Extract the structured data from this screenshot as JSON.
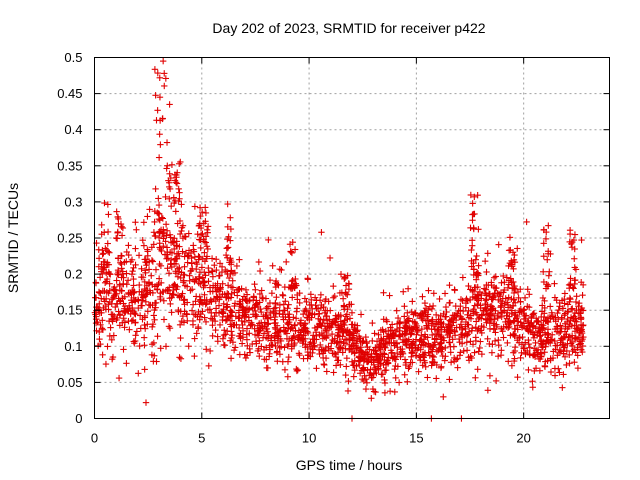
{
  "chart_data": {
    "type": "scatter",
    "title": "Day 202 of 2023, SRMTID for receiver p422",
    "xlabel": "GPS time / hours",
    "ylabel": "SRMTID / TECUs",
    "xlim": [
      0,
      24
    ],
    "ylim": [
      0,
      0.5
    ],
    "x_ticks": [
      0,
      5,
      10,
      15,
      20
    ],
    "x_tick_labels": [
      "0",
      "5",
      "10",
      "15",
      "20"
    ],
    "y_ticks": [
      0,
      0.05,
      0.1,
      0.15,
      0.2,
      0.25,
      0.3,
      0.35,
      0.4,
      0.45,
      0.5
    ],
    "y_tick_labels": [
      "0",
      "0.05",
      "0.1",
      "0.15",
      "0.2",
      "0.25",
      "0.3",
      "0.35",
      "0.4",
      "0.45",
      "0.5"
    ],
    "grid": true,
    "marker": "plus",
    "color": "#e00000",
    "series": [
      {
        "name": "SRMTID",
        "trend": [
          {
            "x": 0.0,
            "mean": 0.15,
            "spread": 0.04
          },
          {
            "x": 1.0,
            "mean": 0.16,
            "spread": 0.05
          },
          {
            "x": 2.0,
            "mean": 0.165,
            "spread": 0.05
          },
          {
            "x": 2.6,
            "mean": 0.175,
            "spread": 0.06
          },
          {
            "x": 3.2,
            "mean": 0.2,
            "spread": 0.07
          },
          {
            "x": 4.0,
            "mean": 0.185,
            "spread": 0.06
          },
          {
            "x": 5.0,
            "mean": 0.17,
            "spread": 0.05
          },
          {
            "x": 6.0,
            "mean": 0.155,
            "spread": 0.045
          },
          {
            "x": 7.0,
            "mean": 0.14,
            "spread": 0.04
          },
          {
            "x": 8.0,
            "mean": 0.13,
            "spread": 0.035
          },
          {
            "x": 9.0,
            "mean": 0.13,
            "spread": 0.04
          },
          {
            "x": 10.0,
            "mean": 0.125,
            "spread": 0.035
          },
          {
            "x": 11.0,
            "mean": 0.12,
            "spread": 0.035
          },
          {
            "x": 12.0,
            "mean": 0.11,
            "spread": 0.035
          },
          {
            "x": 12.5,
            "mean": 0.08,
            "spread": 0.025
          },
          {
            "x": 13.0,
            "mean": 0.08,
            "spread": 0.025
          },
          {
            "x": 13.5,
            "mean": 0.095,
            "spread": 0.03
          },
          {
            "x": 14.5,
            "mean": 0.11,
            "spread": 0.03
          },
          {
            "x": 15.5,
            "mean": 0.115,
            "spread": 0.03
          },
          {
            "x": 16.5,
            "mean": 0.115,
            "spread": 0.03
          },
          {
            "x": 17.5,
            "mean": 0.14,
            "spread": 0.045
          },
          {
            "x": 18.5,
            "mean": 0.15,
            "spread": 0.045
          },
          {
            "x": 19.5,
            "mean": 0.14,
            "spread": 0.04
          },
          {
            "x": 20.5,
            "mean": 0.11,
            "spread": 0.035
          },
          {
            "x": 21.5,
            "mean": 0.12,
            "spread": 0.04
          },
          {
            "x": 22.8,
            "mean": 0.14,
            "spread": 0.045
          }
        ],
        "bursts": [
          {
            "x_start": 0.2,
            "x_end": 0.7,
            "y_min": 0.2,
            "y_max": 0.3
          },
          {
            "x_start": 1.0,
            "x_end": 1.3,
            "y_min": 0.2,
            "y_max": 0.29
          },
          {
            "x_start": 2.8,
            "x_end": 3.4,
            "y_min": 0.25,
            "y_max": 0.5
          },
          {
            "x_start": 3.4,
            "x_end": 4.0,
            "y_min": 0.22,
            "y_max": 0.36
          },
          {
            "x_start": 4.8,
            "x_end": 5.3,
            "y_min": 0.22,
            "y_max": 0.3
          },
          {
            "x_start": 6.1,
            "x_end": 6.4,
            "y_min": 0.2,
            "y_max": 0.3
          },
          {
            "x_start": 9.1,
            "x_end": 9.4,
            "y_min": 0.18,
            "y_max": 0.25
          },
          {
            "x_start": 11.6,
            "x_end": 11.9,
            "y_min": 0.15,
            "y_max": 0.21
          },
          {
            "x_start": 17.5,
            "x_end": 17.9,
            "y_min": 0.2,
            "y_max": 0.31
          },
          {
            "x_start": 19.3,
            "x_end": 19.6,
            "y_min": 0.18,
            "y_max": 0.25
          },
          {
            "x_start": 20.9,
            "x_end": 21.2,
            "y_min": 0.18,
            "y_max": 0.28
          },
          {
            "x_start": 22.1,
            "x_end": 22.4,
            "y_min": 0.18,
            "y_max": 0.26
          }
        ],
        "points": [
          {
            "x": 2.4,
            "y": 0.022
          },
          {
            "x": 3.2,
            "y": 0.495
          },
          {
            "x": 3.25,
            "y": 0.478
          },
          {
            "x": 3.05,
            "y": 0.445
          },
          {
            "x": 3.5,
            "y": 0.435
          },
          {
            "x": 17.7,
            "y": 0.307
          },
          {
            "x": 12.0,
            "y": 0.0
          },
          {
            "x": 15.7,
            "y": 0.0
          },
          {
            "x": 17.1,
            "y": 0.0
          },
          {
            "x": 12.9,
            "y": 0.028
          }
        ],
        "point_count": 2300,
        "x_range": [
          0.0,
          22.8
        ]
      }
    ]
  }
}
